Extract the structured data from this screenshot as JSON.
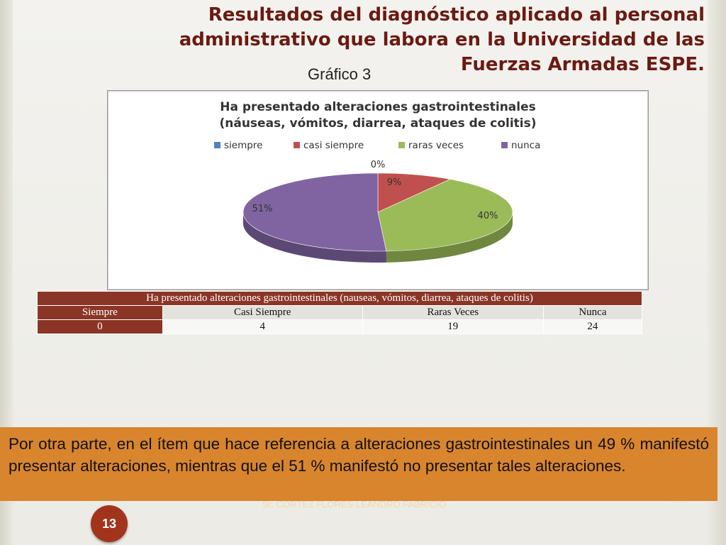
{
  "slide": {
    "title": "Resultados del diagnóstico aplicado al personal administrativo que labora en la Universidad de las Fuerzas Armadas ESPE.",
    "subtitle": "Gráfico 3",
    "note": "Por otra parte, en el ítem que hace referencia a alteraciones gastrointestinales un 49 % manifestó presentar alteraciones, mientras que el 51 % manifestó no presentar tales alteraciones.",
    "footer": "Sr. CORTEZ FLORES LEANDRO FABRICIO",
    "page_number": "13"
  },
  "chart_data": {
    "type": "pie",
    "title_line1": "Ha presentado alteraciones gastrointestinales",
    "title_line2": "(náuseas, vómitos, diarrea, ataques de colitis)",
    "legend_position": "top",
    "categories": [
      "siempre",
      "casi siempre",
      "raras veces",
      "nunca"
    ],
    "values": [
      0,
      9,
      40,
      51
    ],
    "labels": [
      "0%",
      "9%",
      "40%",
      "51%"
    ],
    "colors": [
      "#4f81bd",
      "#c0504d",
      "#9bbb59",
      "#8064a2"
    ]
  },
  "table": {
    "header": "Ha presentado alteraciones gastrointestinales (nauseas, vómitos, diarrea, ataques de colitis)",
    "columns": [
      "Siempre",
      "Casi Siempre",
      "Raras Veces",
      "Nunca"
    ],
    "values": [
      "0",
      "4",
      "19",
      "24"
    ]
  }
}
